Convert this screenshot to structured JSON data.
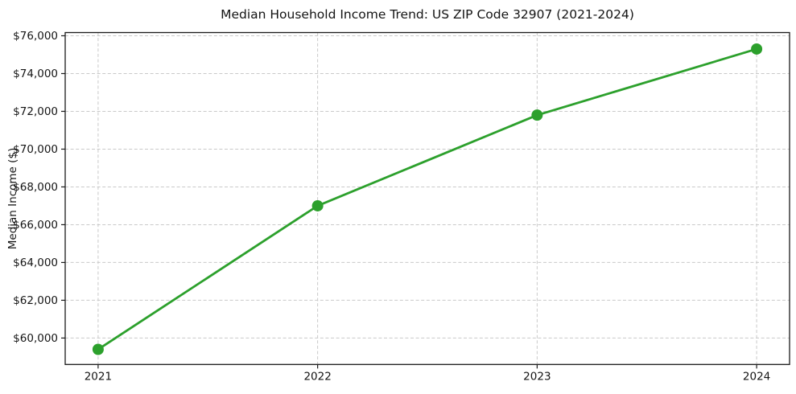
{
  "chart_data": {
    "type": "line",
    "title": "Median Household Income Trend: US ZIP Code 32907 (2021-2024)",
    "xlabel": "",
    "ylabel": "Median Income ($)",
    "x": [
      2021,
      2022,
      2023,
      2024
    ],
    "x_tick_labels": [
      "2021",
      "2022",
      "2023",
      "2024"
    ],
    "values": [
      59400,
      67000,
      71800,
      75300
    ],
    "y_ticks": [
      60000,
      62000,
      64000,
      66000,
      68000,
      70000,
      72000,
      74000,
      76000
    ],
    "y_tick_labels": [
      "$60,000",
      "$62,000",
      "$64,000",
      "$66,000",
      "$68,000",
      "$70,000",
      "$72,000",
      "$74,000",
      "$76,000"
    ],
    "ylim": [
      58600,
      76170
    ],
    "xlim": [
      2020.85,
      2024.15
    ],
    "grid": "both-dashed",
    "legend": "none",
    "marker": "circle",
    "line_color": "#2ca02c",
    "marker_color": "#2ca02c",
    "grid_color": "#c9c9c9",
    "axis_color": "#1a1a1a",
    "text_color": "#141414",
    "background_color": "#ffffff"
  }
}
